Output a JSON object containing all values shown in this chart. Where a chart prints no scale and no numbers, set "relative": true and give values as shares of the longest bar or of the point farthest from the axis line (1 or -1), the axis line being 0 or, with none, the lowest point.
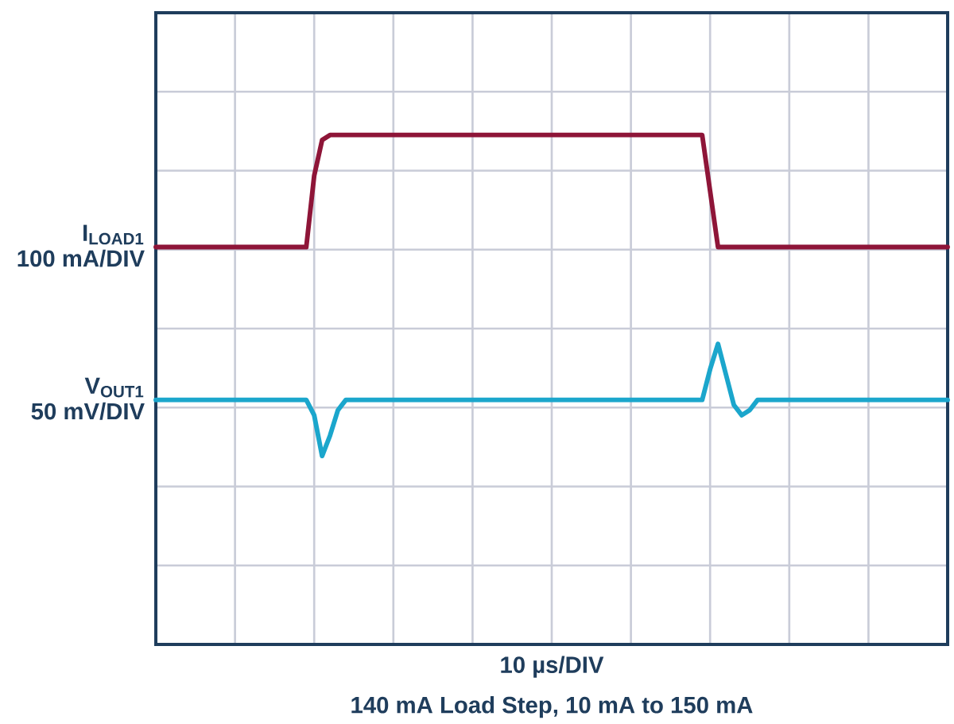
{
  "chart_data": {
    "type": "line",
    "relative": true,
    "grid": true,
    "tick_labels": false,
    "xlabel": "10 µs/DIV",
    "annotations": [
      "100 mA/DIV",
      "50 mV/DIV",
      "140 mA Load Step, 10 mA to 150 mA"
    ],
    "categories": [
      null,
      null,
      null,
      null,
      null,
      null,
      null,
      null,
      null,
      null,
      null,
      null,
      null,
      null,
      null,
      null,
      null,
      null,
      null,
      null,
      null,
      null,
      null,
      null,
      null,
      null,
      null,
      null,
      null,
      null,
      null,
      null,
      null,
      null,
      null,
      null,
      null,
      null,
      null,
      null,
      null,
      null,
      null,
      null,
      null,
      null,
      null,
      null,
      null,
      null,
      null,
      null,
      null,
      null,
      null,
      null,
      null,
      null,
      null,
      null,
      null,
      null,
      null,
      null,
      null,
      null,
      null,
      null,
      null,
      null,
      null,
      null,
      null,
      null,
      null,
      null,
      null,
      null,
      null,
      null,
      null,
      null,
      null,
      null,
      null,
      null,
      null,
      null,
      null,
      null,
      null,
      null,
      null,
      null,
      null,
      null,
      null,
      null,
      null,
      null,
      null
    ],
    "series": [
      {
        "name": "I$_{LOAD1}$",
        "color": "#8e1538",
        "values": [
          0.78,
          0.78,
          0.78,
          0.78,
          0.78,
          0.78,
          0.78,
          0.78,
          0.78,
          0.78,
          0.78,
          0.78,
          0.78,
          0.78,
          0.78,
          0.78,
          0.78,
          0.78,
          0.78,
          0.78,
          0.92,
          0.99,
          1,
          1,
          1,
          1,
          1,
          1,
          1,
          1,
          1,
          1,
          1,
          1,
          1,
          1,
          1,
          1,
          1,
          1,
          1,
          1,
          1,
          1,
          1,
          1,
          1,
          1,
          1,
          1,
          1,
          1,
          1,
          1,
          1,
          1,
          1,
          1,
          1,
          1,
          1,
          1,
          1,
          1,
          1,
          1,
          1,
          1,
          1,
          1,
          0.89,
          0.78,
          0.78,
          0.78,
          0.78,
          0.78,
          0.78,
          0.78,
          0.78,
          0.78,
          0.78,
          0.78,
          0.78,
          0.78,
          0.78,
          0.78,
          0.78,
          0.78,
          0.78,
          0.78,
          0.78,
          0.78,
          0.78,
          0.78,
          0.78,
          0.78,
          0.78,
          0.78,
          0.78,
          0.78,
          0.78
        ]
      },
      {
        "name": "V$_{OUT1}$",
        "color": "#1ba6cc",
        "values": [
          0.48,
          0.48,
          0.48,
          0.48,
          0.48,
          0.48,
          0.48,
          0.48,
          0.48,
          0.48,
          0.48,
          0.48,
          0.48,
          0.48,
          0.48,
          0.48,
          0.48,
          0.48,
          0.48,
          0.48,
          0.45,
          0.37,
          0.41,
          0.46,
          0.48,
          0.48,
          0.48,
          0.48,
          0.48,
          0.48,
          0.48,
          0.48,
          0.48,
          0.48,
          0.48,
          0.48,
          0.48,
          0.48,
          0.48,
          0.48,
          0.48,
          0.48,
          0.48,
          0.48,
          0.48,
          0.48,
          0.48,
          0.48,
          0.48,
          0.48,
          0.48,
          0.48,
          0.48,
          0.48,
          0.48,
          0.48,
          0.48,
          0.48,
          0.48,
          0.48,
          0.48,
          0.48,
          0.48,
          0.48,
          0.48,
          0.48,
          0.48,
          0.48,
          0.48,
          0.48,
          0.54,
          0.59,
          0.53,
          0.47,
          0.45,
          0.46,
          0.48,
          0.48,
          0.48,
          0.48,
          0.48,
          0.48,
          0.48,
          0.48,
          0.48,
          0.48,
          0.48,
          0.48,
          0.48,
          0.48,
          0.48,
          0.48,
          0.48,
          0.48,
          0.48,
          0.48,
          0.48,
          0.48,
          0.48,
          0.48,
          0.48
        ]
      }
    ]
  }
}
